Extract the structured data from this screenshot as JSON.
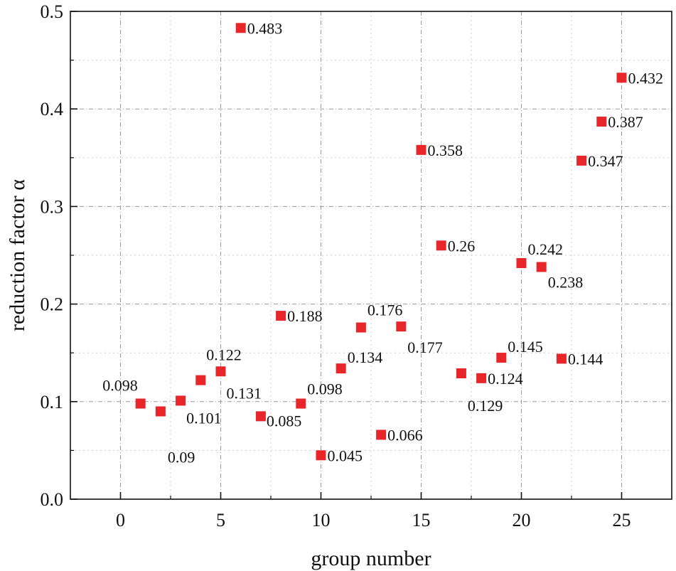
{
  "chart_data": {
    "type": "scatter",
    "title": "",
    "xlabel": "group number",
    "ylabel": "reduction factor α",
    "xlim": [
      -2.5,
      27.5
    ],
    "ylim": [
      0.0,
      0.5
    ],
    "xticks": [
      "0",
      "5",
      "10",
      "15",
      "20",
      "25"
    ],
    "yticks": [
      "0.0",
      "0.1",
      "0.2",
      "0.3",
      "0.4",
      "0.5"
    ],
    "grid": true,
    "marker_color": "#e8262a",
    "series": [
      {
        "name": "reduction factor",
        "points": [
          {
            "x": 1,
            "y": 0.098,
            "label": "0.098"
          },
          {
            "x": 2,
            "y": 0.09,
            "label": "0.09"
          },
          {
            "x": 3,
            "y": 0.101,
            "label": "0.101"
          },
          {
            "x": 4,
            "y": 0.122,
            "label": "0.122"
          },
          {
            "x": 5,
            "y": 0.131,
            "label": "0.131"
          },
          {
            "x": 6,
            "y": 0.483,
            "label": "0.483"
          },
          {
            "x": 7,
            "y": 0.085,
            "label": "0.085"
          },
          {
            "x": 8,
            "y": 0.188,
            "label": "0.188"
          },
          {
            "x": 9,
            "y": 0.098,
            "label": "0.098"
          },
          {
            "x": 10,
            "y": 0.045,
            "label": "0.045"
          },
          {
            "x": 11,
            "y": 0.134,
            "label": "0.134"
          },
          {
            "x": 12,
            "y": 0.176,
            "label": "0.176"
          },
          {
            "x": 13,
            "y": 0.066,
            "label": "0.066"
          },
          {
            "x": 14,
            "y": 0.177,
            "label": "0.177"
          },
          {
            "x": 15,
            "y": 0.358,
            "label": "0.358"
          },
          {
            "x": 16,
            "y": 0.26,
            "label": "0.26"
          },
          {
            "x": 17,
            "y": 0.129,
            "label": "0.129"
          },
          {
            "x": 18,
            "y": 0.124,
            "label": "0.124"
          },
          {
            "x": 19,
            "y": 0.145,
            "label": "0.145"
          },
          {
            "x": 20,
            "y": 0.242,
            "label": "0.242"
          },
          {
            "x": 21,
            "y": 0.238,
            "label": "0.238"
          },
          {
            "x": 22,
            "y": 0.144,
            "label": "0.144"
          },
          {
            "x": 23,
            "y": 0.347,
            "label": "0.347"
          },
          {
            "x": 24,
            "y": 0.387,
            "label": "0.387"
          },
          {
            "x": 25,
            "y": 0.432,
            "label": "0.432"
          }
        ]
      }
    ]
  }
}
